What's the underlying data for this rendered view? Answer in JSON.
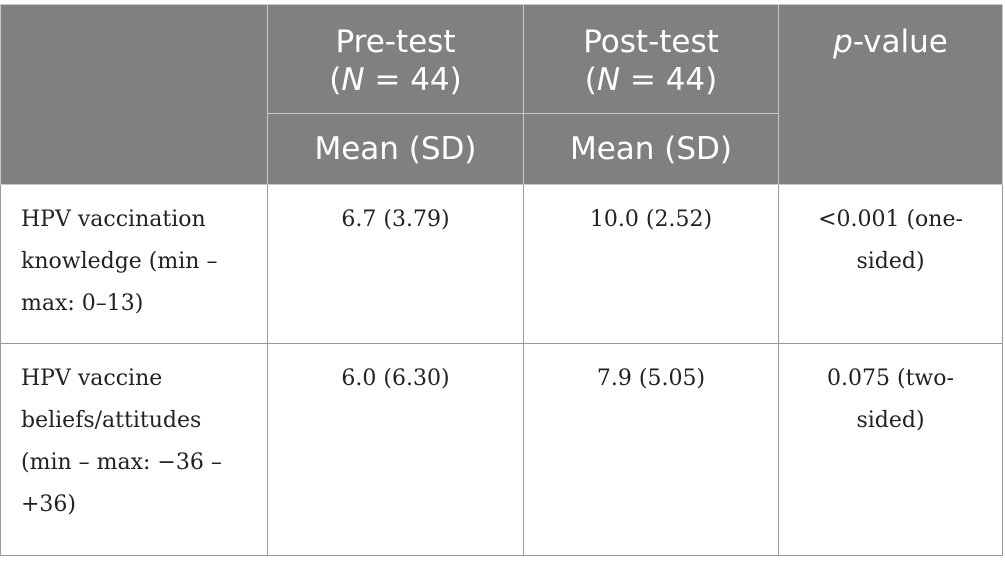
{
  "header": {
    "pre_test_label": "Pre-test",
    "pre_test_n_open": "(",
    "pre_test_n_var": "N",
    "pre_test_n_rest": " = 44)",
    "post_test_label": "Post-test",
    "post_test_n_open": "(",
    "post_test_n_var": "N",
    "post_test_n_rest": " = 44)",
    "p_value_var": "p",
    "p_value_rest": "-value",
    "pre_subheader": "Mean (SD)",
    "post_subheader": "Mean (SD)"
  },
  "rows": [
    {
      "label": "HPV vaccination knowledge (min – max: 0–13)",
      "pre": "6.7 (3.79)",
      "post": "10.0 (2.52)",
      "p": "<0.001 (one-sided)"
    },
    {
      "label": "HPV vaccine beliefs/attitudes (min – max: −36 – +36)",
      "pre": "6.0 (6.30)",
      "post": "7.9 (5.05)",
      "p": "0.075 (two-sided)"
    }
  ]
}
